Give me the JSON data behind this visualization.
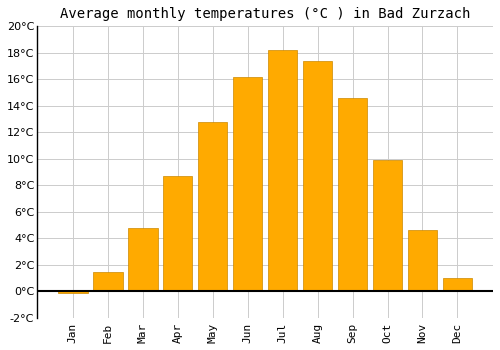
{
  "months": [
    "Jan",
    "Feb",
    "Mar",
    "Apr",
    "May",
    "Jun",
    "Jul",
    "Aug",
    "Sep",
    "Oct",
    "Nov",
    "Dec"
  ],
  "values": [
    -0.1,
    1.5,
    4.8,
    8.7,
    12.8,
    16.2,
    18.2,
    17.4,
    14.6,
    9.9,
    4.6,
    1.0
  ],
  "bar_color": "#FFAA00",
  "bar_edge_color": "#CC8800",
  "title": "Average monthly temperatures (°C ) in Bad Zurzach",
  "ylim": [
    -2,
    20
  ],
  "yticks": [
    -2,
    0,
    2,
    4,
    6,
    8,
    10,
    12,
    14,
    16,
    18,
    20
  ],
  "background_color": "#ffffff",
  "grid_color": "#cccccc",
  "title_fontsize": 10,
  "tick_fontsize": 8
}
